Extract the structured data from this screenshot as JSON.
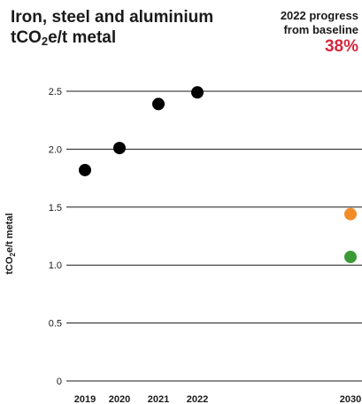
{
  "chart_data": {
    "type": "scatter",
    "title": "Iron, steel and aluminium tCO₂e/t metal",
    "title_line1": "Iron, steel and aluminium",
    "title_line2": "tCO₂e/t metal",
    "ylabel": "tCO₂e/t metal",
    "ylim": [
      0,
      2.5
    ],
    "yticks": [
      "0",
      "0.5",
      "1.0",
      "1.5",
      "2.0",
      "2.5"
    ],
    "ytick_values": [
      0,
      0.5,
      1.0,
      1.5,
      2.0,
      2.5
    ],
    "xticks": [
      "2019",
      "2020",
      "2021",
      "2022",
      "2030"
    ],
    "xtick_values": [
      2019,
      2020,
      2021,
      2022,
      2030
    ],
    "grid": true,
    "series": [
      {
        "color": "#000000",
        "points": [
          [
            2019,
            1.82
          ],
          [
            2020,
            2.01
          ],
          [
            2021,
            2.39
          ],
          [
            2022,
            2.49
          ]
        ]
      },
      {
        "color": "#f28c28",
        "points": [
          [
            2030,
            1.44
          ]
        ]
      },
      {
        "color": "#3a9a35",
        "points": [
          [
            2030,
            1.07
          ]
        ]
      }
    ]
  },
  "progress": {
    "line1": "2022 progress",
    "line2": "from baseline",
    "value": "38%",
    "value_color": "#d7263d"
  }
}
